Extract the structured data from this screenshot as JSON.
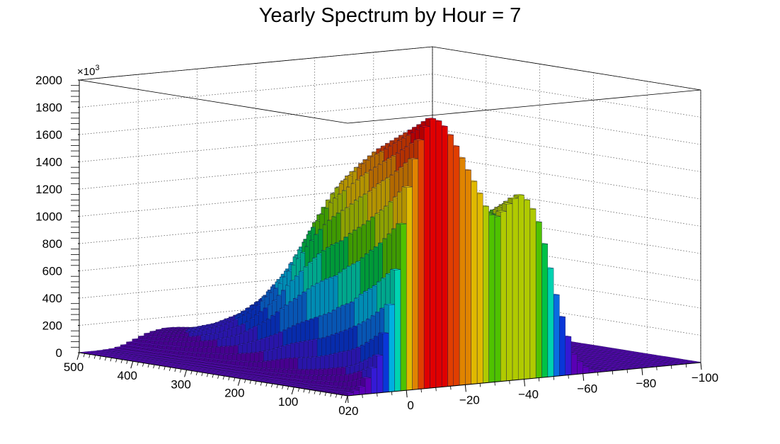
{
  "chart_data": {
    "type": "lego3d",
    "title": "Yearly Spectrum by Hour = 7",
    "xlabel": "",
    "ylabel": "",
    "zlabel": "",
    "z_multiplier_label": "×10",
    "z_multiplier_exponent": "3",
    "x_axis": {
      "range": [
        0,
        500
      ],
      "ticks": [
        0,
        100,
        200,
        300,
        400,
        500
      ],
      "tick_labels": [
        "0",
        "100",
        "200",
        "300",
        "400",
        "500"
      ]
    },
    "y_axis": {
      "range": [
        20,
        -100
      ],
      "ticks": [
        20,
        0,
        -20,
        -40,
        -60,
        -80,
        -100
      ],
      "tick_labels": [
        "20",
        "0",
        "−20",
        "−40",
        "−60",
        "−80",
        "−100"
      ]
    },
    "z_axis": {
      "range": [
        0,
        2000
      ],
      "ticks": [
        0,
        200,
        400,
        600,
        800,
        1000,
        1200,
        1400,
        1600,
        1800,
        2000
      ],
      "tick_labels": [
        "0",
        "200",
        "400",
        "600",
        "800",
        "1000",
        "1200",
        "1400",
        "1600",
        "1800",
        "2000"
      ]
    },
    "grid": true,
    "palette": [
      "#6600cc",
      "#3b1ef2",
      "#0a3ff5",
      "#0a7bff",
      "#00c8ff",
      "#00f0c8",
      "#00dc50",
      "#5adc00",
      "#c8e600",
      "#ffd200",
      "#ff9600",
      "#ff4600",
      "#ff0000"
    ],
    "ridge_x": [
      2,
      20,
      40,
      60,
      80,
      100,
      120,
      140,
      160,
      180,
      200,
      220,
      250,
      300,
      350,
      400,
      450,
      500
    ],
    "y_bins": [
      18,
      15,
      12,
      9,
      6,
      3,
      0,
      -3,
      -6,
      -9,
      -12,
      -15,
      -18,
      -21,
      -24,
      -27,
      -30,
      -33,
      -36,
      -39,
      -42,
      -45,
      -48,
      -51,
      -54,
      -57,
      -60,
      -63,
      -66,
      -69,
      -72
    ],
    "ridge_z": [
      [
        20,
        15,
        12,
        10,
        8,
        6,
        5,
        5,
        4,
        3,
        3,
        3,
        2,
        2,
        2,
        2,
        2,
        2
      ],
      [
        60,
        40,
        30,
        25,
        20,
        15,
        12,
        10,
        8,
        7,
        6,
        5,
        5,
        4,
        3,
        3,
        2,
        2
      ],
      [
        150,
        110,
        80,
        65,
        55,
        45,
        35,
        30,
        25,
        20,
        18,
        15,
        12,
        10,
        8,
        6,
        5,
        4
      ],
      [
        280,
        230,
        180,
        150,
        130,
        110,
        95,
        80,
        70,
        60,
        50,
        40,
        30,
        24,
        18,
        14,
        10,
        8
      ],
      [
        520,
        450,
        380,
        330,
        300,
        260,
        230,
        210,
        190,
        170,
        140,
        110,
        80,
        55,
        40,
        30,
        25,
        20
      ],
      [
        900,
        820,
        740,
        680,
        600,
        560,
        500,
        460,
        420,
        380,
        330,
        280,
        220,
        140,
        100,
        70,
        55,
        45
      ],
      [
        1400,
        1300,
        1200,
        1120,
        1040,
        980,
        900,
        860,
        800,
        720,
        640,
        560,
        420,
        260,
        170,
        120,
        90,
        70
      ],
      [
        1700,
        1620,
        1540,
        1480,
        1400,
        1340,
        1260,
        1200,
        1120,
        1020,
        900,
        780,
        600,
        380,
        250,
        170,
        120,
        95
      ],
      [
        1900,
        1840,
        1780,
        1720,
        1660,
        1600,
        1520,
        1440,
        1360,
        1240,
        1100,
        940,
        720,
        460,
        300,
        200,
        140,
        110
      ],
      [
        1980,
        1920,
        1860,
        1800,
        1740,
        1680,
        1600,
        1520,
        1430,
        1310,
        1160,
        1000,
        770,
        500,
        330,
        220,
        150,
        120
      ],
      [
        1950,
        1880,
        1820,
        1760,
        1700,
        1640,
        1560,
        1480,
        1400,
        1280,
        1140,
        980,
        760,
        490,
        320,
        215,
        150,
        120
      ],
      [
        1850,
        1780,
        1720,
        1660,
        1600,
        1540,
        1460,
        1380,
        1300,
        1190,
        1060,
        910,
        700,
        450,
        300,
        200,
        140,
        110
      ],
      [
        1720,
        1650,
        1590,
        1530,
        1470,
        1410,
        1340,
        1270,
        1190,
        1090,
        970,
        830,
        640,
        410,
        270,
        180,
        125,
        100
      ],
      [
        1580,
        1510,
        1450,
        1400,
        1340,
        1290,
        1220,
        1150,
        1080,
        990,
        880,
        750,
        580,
        370,
        245,
        165,
        115,
        90
      ],
      [
        1450,
        1390,
        1340,
        1290,
        1240,
        1190,
        1130,
        1060,
        1000,
        910,
        810,
        690,
        530,
        340,
        225,
        150,
        105,
        85
      ],
      [
        1300,
        1250,
        1200,
        1160,
        1120,
        1070,
        1010,
        950,
        890,
        820,
        730,
        620,
        480,
        310,
        205,
        140,
        95,
        75
      ],
      [
        1200,
        1160,
        1120,
        1080,
        1040,
        1000,
        940,
        880,
        820,
        760,
        680,
        580,
        450,
        290,
        190,
        130,
        90,
        70
      ],
      [
        1250,
        1200,
        1150,
        1100,
        1060,
        1010,
        950,
        890,
        830,
        760,
        680,
        570,
        440,
        280,
        185,
        125,
        88,
        68
      ],
      [
        1330,
        1270,
        1210,
        1160,
        1110,
        1060,
        990,
        920,
        860,
        780,
        690,
        580,
        440,
        280,
        185,
        125,
        88,
        68
      ],
      [
        1360,
        1290,
        1230,
        1170,
        1110,
        1050,
        980,
        910,
        840,
        760,
        670,
        560,
        420,
        270,
        180,
        120,
        85,
        65
      ],
      [
        1300,
        1230,
        1160,
        1100,
        1040,
        980,
        910,
        840,
        770,
        700,
        610,
        510,
        390,
        250,
        165,
        110,
        80,
        60
      ],
      [
        1150,
        1080,
        1020,
        960,
        900,
        850,
        790,
        730,
        670,
        600,
        530,
        440,
        335,
        215,
        145,
        98,
        70,
        55
      ],
      [
        900,
        850,
        800,
        750,
        710,
        660,
        610,
        560,
        510,
        460,
        400,
        335,
        255,
        165,
        110,
        75,
        55,
        42
      ],
      [
        600,
        560,
        520,
        490,
        460,
        430,
        400,
        370,
        340,
        300,
        265,
        220,
        170,
        110,
        75,
        50,
        37,
        28
      ],
      [
        350,
        320,
        300,
        280,
        260,
        245,
        225,
        210,
        190,
        170,
        150,
        125,
        96,
        62,
        42,
        30,
        22,
        17
      ],
      [
        150,
        140,
        130,
        120,
        112,
        104,
        96,
        88,
        80,
        72,
        63,
        53,
        41,
        27,
        18,
        13,
        10,
        8
      ],
      [
        60,
        55,
        50,
        47,
        44,
        41,
        38,
        35,
        32,
        29,
        25,
        21,
        16,
        11,
        8,
        6,
        5,
        4
      ],
      [
        25,
        23,
        21,
        20,
        18,
        17,
        16,
        15,
        13,
        12,
        10,
        9,
        7,
        5,
        4,
        3,
        2,
        2
      ],
      [
        12,
        11,
        10,
        9,
        9,
        8,
        8,
        7,
        6,
        6,
        5,
        4,
        3,
        3,
        2,
        2,
        2,
        1
      ],
      [
        6,
        6,
        5,
        5,
        5,
        4,
        4,
        4,
        3,
        3,
        3,
        2,
        2,
        2,
        1,
        1,
        1,
        1
      ],
      [
        3,
        3,
        3,
        3,
        2,
        2,
        2,
        2,
        2,
        2,
        2,
        1,
        1,
        1,
        1,
        1,
        1,
        1
      ]
    ]
  }
}
